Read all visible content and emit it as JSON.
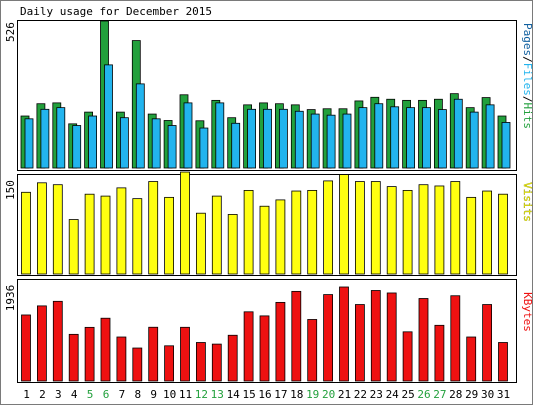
{
  "title": "Daily usage for December 2015",
  "colors": {
    "background": "#ffffff",
    "frame": "#000000",
    "hits": "#22a03c",
    "files": "#22b4ee",
    "visits": "#ffff10",
    "kbytes": "#ee1111",
    "weekend_label": "#22a03c",
    "weekday_label": "#000000",
    "pages": "#1060a0"
  },
  "legend": {
    "top": [
      {
        "text": "Pages",
        "color_key": "pages"
      },
      {
        "text": "/",
        "color_key": "frame"
      },
      {
        "text": "Files",
        "color_key": "files"
      },
      {
        "text": "/",
        "color_key": "frame"
      },
      {
        "text": "Hits",
        "color_key": "hits"
      }
    ],
    "middle": "Visits",
    "bottom": "KBytes"
  },
  "chart_data": [
    {
      "type": "bar",
      "panel": "top",
      "title": "Daily usage for December 2015",
      "ylabel": "Pages/Files/Hits",
      "ytick_label": "526",
      "ymax": 526,
      "categories": [
        "1",
        "2",
        "3",
        "4",
        "5",
        "6",
        "7",
        "8",
        "9",
        "10",
        "11",
        "12",
        "13",
        "14",
        "15",
        "16",
        "17",
        "18",
        "19",
        "20",
        "21",
        "22",
        "23",
        "24",
        "25",
        "26",
        "27",
        "28",
        "29",
        "30",
        "31"
      ],
      "series": [
        {
          "name": "Hits",
          "values": [
            186,
            230,
            233,
            158,
            200,
            526,
            200,
            456,
            193,
            170,
            262,
            169,
            242,
            180,
            226,
            233,
            230,
            226,
            209,
            212,
            212,
            240,
            253,
            246,
            242,
            242,
            246,
            266,
            216,
            252,
            186
          ]
        },
        {
          "name": "Files",
          "values": [
            176,
            210,
            216,
            152,
            186,
            369,
            180,
            301,
            176,
            152,
            233,
            143,
            233,
            160,
            210,
            210,
            210,
            203,
            193,
            189,
            193,
            216,
            230,
            219,
            216,
            216,
            209,
            246,
            200,
            226,
            163
          ]
        }
      ],
      "weekend_days": [
        "5",
        "6",
        "12",
        "13",
        "19",
        "20",
        "26",
        "27"
      ]
    },
    {
      "type": "bar",
      "panel": "middle",
      "ylabel": "Visits",
      "ytick_label": "150",
      "ymax": 150,
      "categories": [
        "1",
        "2",
        "3",
        "4",
        "5",
        "6",
        "7",
        "8",
        "9",
        "10",
        "11",
        "12",
        "13",
        "14",
        "15",
        "16",
        "17",
        "18",
        "19",
        "20",
        "21",
        "22",
        "23",
        "24",
        "25",
        "26",
        "27",
        "28",
        "29",
        "30",
        "31"
      ],
      "series": [
        {
          "name": "Visits",
          "values": [
            129,
            144,
            141,
            86,
            126,
            123,
            136,
            119,
            146,
            121,
            161,
            96,
            123,
            94,
            132,
            107,
            117,
            131,
            132,
            147,
            157,
            146,
            146,
            138,
            132,
            141,
            139,
            146,
            121,
            131,
            126
          ]
        }
      ]
    },
    {
      "type": "bar",
      "panel": "bottom",
      "ylabel": "KBytes",
      "ytick_label": "1936",
      "ymax": 1936,
      "categories": [
        "1",
        "2",
        "3",
        "4",
        "5",
        "6",
        "7",
        "8",
        "9",
        "10",
        "11",
        "12",
        "13",
        "14",
        "15",
        "16",
        "17",
        "18",
        "19",
        "20",
        "21",
        "22",
        "23",
        "24",
        "25",
        "26",
        "27",
        "28",
        "29",
        "30",
        "31"
      ],
      "series": [
        {
          "name": "KBytes",
          "values": [
            1360,
            1547,
            1641,
            961,
            1105,
            1293,
            906,
            679,
            1107,
            725,
            1106,
            793,
            760,
            942,
            1425,
            1341,
            1619,
            1846,
            1267,
            1780,
            1936,
            1575,
            1864,
            1813,
            1013,
            1699,
            1147,
            1756,
            906,
            1575,
            793
          ]
        }
      ]
    }
  ]
}
